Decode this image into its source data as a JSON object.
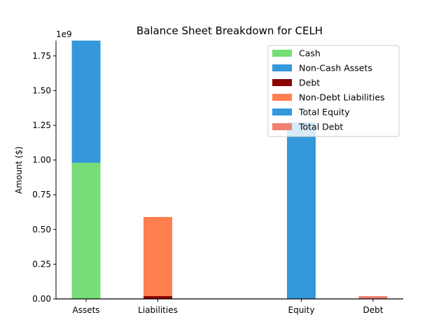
{
  "chart_data": {
    "type": "bar",
    "title": "Balance Sheet Breakdown for CELH",
    "ylabel": "Amount ($)",
    "xlabel": "",
    "exponent_label": "1e9",
    "ylim": [
      0,
      1.86
    ],
    "yticks": [
      "0.00",
      "0.25",
      "0.50",
      "0.75",
      "1.00",
      "1.25",
      "1.50",
      "1.75"
    ],
    "ytick_values": [
      0,
      0.25,
      0.5,
      0.75,
      1.0,
      1.25,
      1.5,
      1.75
    ],
    "categories": [
      "Assets",
      "Liabilities",
      "Equity",
      "Debt"
    ],
    "category_positions": [
      0,
      1,
      3,
      4
    ],
    "grid": false,
    "legend_position": "top-right",
    "series": [
      {
        "name": "Cash",
        "color": "#77dd77",
        "stack_on": null,
        "values": [
          0.98,
          null,
          null,
          null
        ]
      },
      {
        "name": "Non-Cash Assets",
        "color": "#3498db",
        "stack_on": "Cash",
        "values": [
          0.88,
          null,
          null,
          null
        ]
      },
      {
        "name": "Debt",
        "color": "#8b0000",
        "stack_on": null,
        "values": [
          null,
          0.02,
          null,
          null
        ]
      },
      {
        "name": "Non-Debt Liabilities",
        "color": "#ff7f50",
        "stack_on": "Debt",
        "values": [
          null,
          0.57,
          null,
          null
        ]
      },
      {
        "name": "Total Equity",
        "color": "#3498db",
        "stack_on": null,
        "values": [
          null,
          null,
          1.27,
          null
        ]
      },
      {
        "name": "Total Debt",
        "color": "#f08070",
        "stack_on": null,
        "values": [
          null,
          null,
          null,
          0.02
        ]
      }
    ]
  }
}
